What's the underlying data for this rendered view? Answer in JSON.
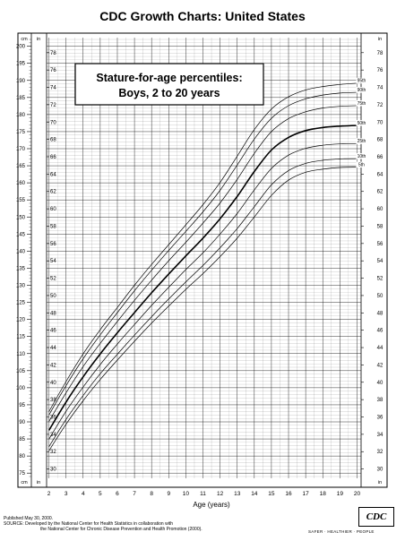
{
  "page_title": "CDC Growth Charts: United States",
  "footer": {
    "published": "Published May 30, 2000.",
    "source": "SOURCE: Developed by the National Center for Health Statistics in collaboration with",
    "source2": "the National Center for Chronic Disease Prevention and Health Promotion (2000).",
    "logo_text": "CDC",
    "tagline": "SAFER · HEALTHIER · PEOPLE"
  },
  "chart_data": {
    "type": "line",
    "title": "Stature-for-age percentiles:",
    "subtitle": "Boys, 2 to 20 years",
    "xlabel": "Age (years)",
    "xlim": [
      1.5,
      20.5
    ],
    "x_ticks": [
      2,
      3,
      4,
      5,
      6,
      7,
      8,
      9,
      10,
      11,
      12,
      13,
      14,
      15,
      16,
      17,
      18,
      19,
      20
    ],
    "left_unit": "cm",
    "right_unit": "in",
    "bottom_left_unit": "cm",
    "bottom_right_unit": "in",
    "ylim_cm": [
      74,
      202
    ],
    "cm_ticks": [
      75,
      80,
      85,
      90,
      95,
      100,
      105,
      110,
      115,
      120,
      125,
      130,
      135,
      140,
      145,
      150,
      155,
      160,
      165,
      170,
      175,
      180,
      185,
      190,
      195,
      200
    ],
    "in_ticks": [
      30,
      32,
      34,
      36,
      38,
      40,
      42,
      44,
      46,
      48,
      50,
      52,
      54,
      56,
      58,
      60,
      62,
      64,
      66,
      68,
      70,
      72,
      74,
      76,
      78
    ],
    "grid": true,
    "series": [
      {
        "name": "95th",
        "x": [
          2,
          3,
          4,
          5,
          6,
          7,
          8,
          9,
          10,
          11,
          12,
          13,
          14,
          15,
          16,
          17,
          18,
          19,
          20
        ],
        "y_cm": [
          93.0,
          101.8,
          109.9,
          117.0,
          123.5,
          130.0,
          136.1,
          141.9,
          147.7,
          153.6,
          160.1,
          167.8,
          175.6,
          181.6,
          185.2,
          187.2,
          188.2,
          188.8,
          189.2
        ]
      },
      {
        "name": "90th",
        "x": [
          2,
          3,
          4,
          5,
          6,
          7,
          8,
          9,
          10,
          11,
          12,
          13,
          14,
          15,
          16,
          17,
          18,
          19,
          20
        ],
        "y_cm": [
          92.0,
          100.6,
          108.5,
          115.5,
          122.0,
          128.4,
          134.4,
          140.2,
          145.8,
          151.5,
          157.8,
          165.2,
          172.8,
          178.9,
          182.6,
          184.6,
          185.7,
          186.3,
          186.5
        ]
      },
      {
        "name": "75th",
        "x": [
          2,
          3,
          4,
          5,
          6,
          7,
          8,
          9,
          10,
          11,
          12,
          13,
          14,
          15,
          16,
          17,
          18,
          19,
          20
        ],
        "y_cm": [
          90.1,
          98.5,
          106.2,
          113.0,
          119.4,
          125.6,
          131.5,
          137.2,
          142.6,
          148.2,
          154.1,
          161.0,
          168.6,
          175.0,
          178.8,
          180.8,
          181.9,
          182.4,
          182.6
        ]
      },
      {
        "name": "50th",
        "x": [
          2,
          3,
          4,
          5,
          6,
          7,
          8,
          9,
          10,
          11,
          12,
          13,
          14,
          15,
          16,
          17,
          18,
          19,
          20
        ],
        "y_cm": [
          87.5,
          95.8,
          103.2,
          109.9,
          116.1,
          122.0,
          127.8,
          133.3,
          138.6,
          143.8,
          149.5,
          156.0,
          163.3,
          169.6,
          173.3,
          175.3,
          176.2,
          176.6,
          176.8
        ]
      },
      {
        "name": "25th",
        "x": [
          2,
          3,
          4,
          5,
          6,
          7,
          8,
          9,
          10,
          11,
          12,
          13,
          14,
          15,
          16,
          17,
          18,
          19,
          20
        ],
        "y_cm": [
          84.9,
          93.1,
          100.2,
          106.8,
          112.8,
          118.5,
          124.1,
          129.4,
          134.6,
          139.5,
          145.0,
          151.0,
          157.9,
          164.2,
          168.1,
          170.1,
          171.0,
          171.4,
          171.5
        ]
      },
      {
        "name": "10th",
        "x": [
          2,
          3,
          4,
          5,
          6,
          7,
          8,
          9,
          10,
          11,
          12,
          13,
          14,
          15,
          16,
          17,
          18,
          19,
          20
        ],
        "y_cm": [
          82.7,
          90.7,
          97.7,
          104.1,
          109.8,
          115.4,
          120.8,
          126.0,
          131.0,
          135.8,
          141.0,
          146.6,
          153.0,
          159.4,
          163.6,
          165.7,
          166.6,
          167.0,
          167.1
        ]
      },
      {
        "name": "5th",
        "x": [
          2,
          3,
          4,
          5,
          6,
          7,
          8,
          9,
          10,
          11,
          12,
          13,
          14,
          15,
          16,
          17,
          18,
          19,
          20
        ],
        "y_cm": [
          81.5,
          89.3,
          96.2,
          102.4,
          108.1,
          113.6,
          118.9,
          123.9,
          128.8,
          133.4,
          138.4,
          143.8,
          150.0,
          156.3,
          160.8,
          163.1,
          164.0,
          164.5,
          164.6
        ]
      }
    ]
  }
}
